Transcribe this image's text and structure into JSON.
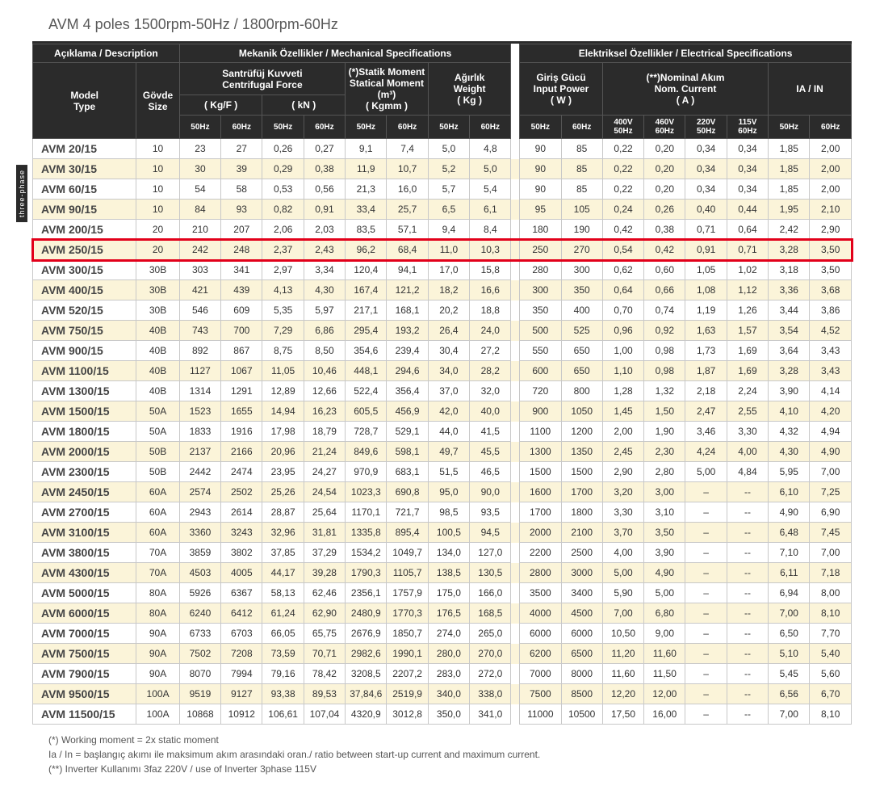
{
  "title": "AVM 4 poles 1500rpm-50Hz  / 1800rpm-60Hz",
  "side_label": "three-phase",
  "headers": {
    "desc": "Açıklama / Description",
    "mech": "Mekanik Özellikler / Mechanical Specifications",
    "elec": "Elektriksel Özellikler / Electrical Specifications",
    "model": "Model\nType",
    "size": "Gövde\nSize",
    "cf": "Santrüfüj Kuvveti\nCentrifugal Force",
    "cf_kg": "( Kg/F )",
    "cf_kn": "( kN )",
    "sm": "(*)Statik Moment\nStatical Moment (m³)",
    "sm_unit": "( Kgmm )",
    "wt": "Ağırlık\nWeight",
    "wt_unit": "( Kg )",
    "ip": "Giriş Gücü\nInput Power",
    "ip_unit": "( W )",
    "nc": "(**)Nominal Akım\nNom. Current",
    "nc_unit": "( A )",
    "iain": "IA / IN",
    "sub": {
      "hz50": "50Hz",
      "hz60": "60Hz",
      "v400_50": "400V\n50Hz",
      "v460_60": "460V\n60Hz",
      "v220_50": "220V\n50Hz",
      "v115_60": "115V\n60Hz"
    }
  },
  "highlight_model": "AVM 250/15",
  "rows": [
    {
      "model": "AVM 20/15",
      "size": "10",
      "cf": [
        "23",
        "27",
        "0,26",
        "0,27"
      ],
      "sm": [
        "9,1",
        "7,4"
      ],
      "wt": [
        "5,0",
        "4,8"
      ],
      "ip": [
        "90",
        "85"
      ],
      "nc": [
        "0,22",
        "0,20",
        "0,34",
        "0,34"
      ],
      "ia": [
        "1,85",
        "2,00"
      ]
    },
    {
      "model": "AVM 30/15",
      "size": "10",
      "cf": [
        "30",
        "39",
        "0,29",
        "0,38"
      ],
      "sm": [
        "11,9",
        "10,7"
      ],
      "wt": [
        "5,2",
        "5,0"
      ],
      "ip": [
        "90",
        "85"
      ],
      "nc": [
        "0,22",
        "0,20",
        "0,34",
        "0,34"
      ],
      "ia": [
        "1,85",
        "2,00"
      ]
    },
    {
      "model": "AVM 60/15",
      "size": "10",
      "cf": [
        "54",
        "58",
        "0,53",
        "0,56"
      ],
      "sm": [
        "21,3",
        "16,0"
      ],
      "wt": [
        "5,7",
        "5,4"
      ],
      "ip": [
        "90",
        "85"
      ],
      "nc": [
        "0,22",
        "0,20",
        "0,34",
        "0,34"
      ],
      "ia": [
        "1,85",
        "2,00"
      ]
    },
    {
      "model": "AVM 90/15",
      "size": "10",
      "cf": [
        "84",
        "93",
        "0,82",
        "0,91"
      ],
      "sm": [
        "33,4",
        "25,7"
      ],
      "wt": [
        "6,5",
        "6,1"
      ],
      "ip": [
        "95",
        "105"
      ],
      "nc": [
        "0,24",
        "0,26",
        "0,40",
        "0,44"
      ],
      "ia": [
        "1,95",
        "2,10"
      ]
    },
    {
      "model": "AVM 200/15",
      "size": "20",
      "cf": [
        "210",
        "207",
        "2,06",
        "2,03"
      ],
      "sm": [
        "83,5",
        "57,1"
      ],
      "wt": [
        "9,4",
        "8,4"
      ],
      "ip": [
        "180",
        "190"
      ],
      "nc": [
        "0,42",
        "0,38",
        "0,71",
        "0,64"
      ],
      "ia": [
        "2,42",
        "2,90"
      ]
    },
    {
      "model": "AVM 250/15",
      "size": "20",
      "cf": [
        "242",
        "248",
        "2,37",
        "2,43"
      ],
      "sm": [
        "96,2",
        "68,4"
      ],
      "wt": [
        "11,0",
        "10,3"
      ],
      "ip": [
        "250",
        "270"
      ],
      "nc": [
        "0,54",
        "0,42",
        "0,91",
        "0,71"
      ],
      "ia": [
        "3,28",
        "3,50"
      ]
    },
    {
      "model": "AVM 300/15",
      "size": "30B",
      "cf": [
        "303",
        "341",
        "2,97",
        "3,34"
      ],
      "sm": [
        "120,4",
        "94,1"
      ],
      "wt": [
        "17,0",
        "15,8"
      ],
      "ip": [
        "280",
        "300"
      ],
      "nc": [
        "0,62",
        "0,60",
        "1,05",
        "1,02"
      ],
      "ia": [
        "3,18",
        "3,50"
      ]
    },
    {
      "model": "AVM 400/15",
      "size": "30B",
      "cf": [
        "421",
        "439",
        "4,13",
        "4,30"
      ],
      "sm": [
        "167,4",
        "121,2"
      ],
      "wt": [
        "18,2",
        "16,6"
      ],
      "ip": [
        "300",
        "350"
      ],
      "nc": [
        "0,64",
        "0,66",
        "1,08",
        "1,12"
      ],
      "ia": [
        "3,36",
        "3,68"
      ]
    },
    {
      "model": "AVM 520/15",
      "size": "30B",
      "cf": [
        "546",
        "609",
        "5,35",
        "5,97"
      ],
      "sm": [
        "217,1",
        "168,1"
      ],
      "wt": [
        "20,2",
        "18,8"
      ],
      "ip": [
        "350",
        "400"
      ],
      "nc": [
        "0,70",
        "0,74",
        "1,19",
        "1,26"
      ],
      "ia": [
        "3,44",
        "3,86"
      ]
    },
    {
      "model": "AVM 750/15",
      "size": "40B",
      "cf": [
        "743",
        "700",
        "7,29",
        "6,86"
      ],
      "sm": [
        "295,4",
        "193,2"
      ],
      "wt": [
        "26,4",
        "24,0"
      ],
      "ip": [
        "500",
        "525"
      ],
      "nc": [
        "0,96",
        "0,92",
        "1,63",
        "1,57"
      ],
      "ia": [
        "3,54",
        "4,52"
      ]
    },
    {
      "model": "AVM 900/15",
      "size": "40B",
      "cf": [
        "892",
        "867",
        "8,75",
        "8,50"
      ],
      "sm": [
        "354,6",
        "239,4"
      ],
      "wt": [
        "30,4",
        "27,2"
      ],
      "ip": [
        "550",
        "650"
      ],
      "nc": [
        "1,00",
        "0,98",
        "1,73",
        "1,69"
      ],
      "ia": [
        "3,64",
        "3,43"
      ]
    },
    {
      "model": "AVM 1100/15",
      "size": "40B",
      "cf": [
        "1127",
        "1067",
        "11,05",
        "10,46"
      ],
      "sm": [
        "448,1",
        "294,6"
      ],
      "wt": [
        "34,0",
        "28,2"
      ],
      "ip": [
        "600",
        "650"
      ],
      "nc": [
        "1,10",
        "0,98",
        "1,87",
        "1,69"
      ],
      "ia": [
        "3,28",
        "3,43"
      ]
    },
    {
      "model": "AVM 1300/15",
      "size": "40B",
      "cf": [
        "1314",
        "1291",
        "12,89",
        "12,66"
      ],
      "sm": [
        "522,4",
        "356,4"
      ],
      "wt": [
        "37,0",
        "32,0"
      ],
      "ip": [
        "720",
        "800"
      ],
      "nc": [
        "1,28",
        "1,32",
        "2,18",
        "2,24"
      ],
      "ia": [
        "3,90",
        "4,14"
      ]
    },
    {
      "model": "AVM 1500/15",
      "size": "50A",
      "cf": [
        "1523",
        "1655",
        "14,94",
        "16,23"
      ],
      "sm": [
        "605,5",
        "456,9"
      ],
      "wt": [
        "42,0",
        "40,0"
      ],
      "ip": [
        "900",
        "1050"
      ],
      "nc": [
        "1,45",
        "1,50",
        "2,47",
        "2,55"
      ],
      "ia": [
        "4,10",
        "4,20"
      ]
    },
    {
      "model": "AVM 1800/15",
      "size": "50A",
      "cf": [
        "1833",
        "1916",
        "17,98",
        "18,79"
      ],
      "sm": [
        "728,7",
        "529,1"
      ],
      "wt": [
        "44,0",
        "41,5"
      ],
      "ip": [
        "1100",
        "1200"
      ],
      "nc": [
        "2,00",
        "1,90",
        "3,46",
        "3,30"
      ],
      "ia": [
        "4,32",
        "4,94"
      ]
    },
    {
      "model": "AVM 2000/15",
      "size": "50B",
      "cf": [
        "2137",
        "2166",
        "20,96",
        "21,24"
      ],
      "sm": [
        "849,6",
        "598,1"
      ],
      "wt": [
        "49,7",
        "45,5"
      ],
      "ip": [
        "1300",
        "1350"
      ],
      "nc": [
        "2,45",
        "2,30",
        "4,24",
        "4,00"
      ],
      "ia": [
        "4,30",
        "4,90"
      ]
    },
    {
      "model": "AVM 2300/15",
      "size": "50B",
      "cf": [
        "2442",
        "2474",
        "23,95",
        "24,27"
      ],
      "sm": [
        "970,9",
        "683,1"
      ],
      "wt": [
        "51,5",
        "46,5"
      ],
      "ip": [
        "1500",
        "1500"
      ],
      "nc": [
        "2,90",
        "2,80",
        "5,00",
        "4,84"
      ],
      "ia": [
        "5,95",
        "7,00"
      ]
    },
    {
      "model": "AVM 2450/15",
      "size": "60A",
      "cf": [
        "2574",
        "2502",
        "25,26",
        "24,54"
      ],
      "sm": [
        "1023,3",
        "690,8"
      ],
      "wt": [
        "95,0",
        "90,0"
      ],
      "ip": [
        "1600",
        "1700"
      ],
      "nc": [
        "3,20",
        "3,00",
        "–",
        "--"
      ],
      "ia": [
        "6,10",
        "7,25"
      ]
    },
    {
      "model": "AVM 2700/15",
      "size": "60A",
      "cf": [
        "2943",
        "2614",
        "28,87",
        "25,64"
      ],
      "sm": [
        "1170,1",
        "721,7"
      ],
      "wt": [
        "98,5",
        "93,5"
      ],
      "ip": [
        "1700",
        "1800"
      ],
      "nc": [
        "3,30",
        "3,10",
        "–",
        "--"
      ],
      "ia": [
        "4,90",
        "6,90"
      ]
    },
    {
      "model": "AVM 3100/15",
      "size": "60A",
      "cf": [
        "3360",
        "3243",
        "32,96",
        "31,81"
      ],
      "sm": [
        "1335,8",
        "895,4"
      ],
      "wt": [
        "100,5",
        "94,5"
      ],
      "ip": [
        "2000",
        "2100"
      ],
      "nc": [
        "3,70",
        "3,50",
        "–",
        "--"
      ],
      "ia": [
        "6,48",
        "7,45"
      ]
    },
    {
      "model": "AVM 3800/15",
      "size": "70A",
      "cf": [
        "3859",
        "3802",
        "37,85",
        "37,29"
      ],
      "sm": [
        "1534,2",
        "1049,7"
      ],
      "wt": [
        "134,0",
        "127,0"
      ],
      "ip": [
        "2200",
        "2500"
      ],
      "nc": [
        "4,00",
        "3,90",
        "–",
        "--"
      ],
      "ia": [
        "7,10",
        "7,00"
      ]
    },
    {
      "model": "AVM 4300/15",
      "size": "70A",
      "cf": [
        "4503",
        "4005",
        "44,17",
        "39,28"
      ],
      "sm": [
        "1790,3",
        "1105,7"
      ],
      "wt": [
        "138,5",
        "130,5"
      ],
      "ip": [
        "2800",
        "3000"
      ],
      "nc": [
        "5,00",
        "4,90",
        "–",
        "--"
      ],
      "ia": [
        "6,11",
        "7,18"
      ]
    },
    {
      "model": "AVM 5000/15",
      "size": "80A",
      "cf": [
        "5926",
        "6367",
        "58,13",
        "62,46"
      ],
      "sm": [
        "2356,1",
        "1757,9"
      ],
      "wt": [
        "175,0",
        "166,0"
      ],
      "ip": [
        "3500",
        "3400"
      ],
      "nc": [
        "5,90",
        "5,00",
        "–",
        "--"
      ],
      "ia": [
        "6,94",
        "8,00"
      ]
    },
    {
      "model": "AVM 6000/15",
      "size": "80A",
      "cf": [
        "6240",
        "6412",
        "61,24",
        "62,90"
      ],
      "sm": [
        "2480,9",
        "1770,3"
      ],
      "wt": [
        "176,5",
        "168,5"
      ],
      "ip": [
        "4000",
        "4500"
      ],
      "nc": [
        "7,00",
        "6,80",
        "–",
        "--"
      ],
      "ia": [
        "7,00",
        "8,10"
      ]
    },
    {
      "model": "AVM 7000/15",
      "size": "90A",
      "cf": [
        "6733",
        "6703",
        "66,05",
        "65,75"
      ],
      "sm": [
        "2676,9",
        "1850,7"
      ],
      "wt": [
        "274,0",
        "265,0"
      ],
      "ip": [
        "6000",
        "6000"
      ],
      "nc": [
        "10,50",
        "9,00",
        "–",
        "--"
      ],
      "ia": [
        "6,50",
        "7,70"
      ]
    },
    {
      "model": "AVM 7500/15",
      "size": "90A",
      "cf": [
        "7502",
        "7208",
        "73,59",
        "70,71"
      ],
      "sm": [
        "2982,6",
        "1990,1"
      ],
      "wt": [
        "280,0",
        "270,0"
      ],
      "ip": [
        "6200",
        "6500"
      ],
      "nc": [
        "11,20",
        "11,60",
        "–",
        "--"
      ],
      "ia": [
        "5,10",
        "5,40"
      ]
    },
    {
      "model": "AVM 7900/15",
      "size": "90A",
      "cf": [
        "8070",
        "7994",
        "79,16",
        "78,42"
      ],
      "sm": [
        "3208,5",
        "2207,2"
      ],
      "wt": [
        "283,0",
        "272,0"
      ],
      "ip": [
        "7000",
        "8000"
      ],
      "nc": [
        "11,60",
        "11,50",
        "–",
        "--"
      ],
      "ia": [
        "5,45",
        "5,60"
      ]
    },
    {
      "model": "AVM 9500/15",
      "size": "100A",
      "cf": [
        "9519",
        "9127",
        "93,38",
        "89,53"
      ],
      "sm": [
        "37,84,6",
        "2519,9"
      ],
      "wt": [
        "340,0",
        "338,0"
      ],
      "ip": [
        "7500",
        "8500"
      ],
      "nc": [
        "12,20",
        "12,00",
        "–",
        "--"
      ],
      "ia": [
        "6,56",
        "6,70"
      ]
    },
    {
      "model": "AVM 11500/15",
      "size": "100A",
      "cf": [
        "10868",
        "10912",
        "106,61",
        "107,04"
      ],
      "sm": [
        "4320,9",
        "3012,8"
      ],
      "wt": [
        "350,0",
        "341,0"
      ],
      "ip": [
        "11000",
        "10500"
      ],
      "nc": [
        "17,50",
        "16,00",
        "–",
        "--"
      ],
      "ia": [
        "7,00",
        "8,10"
      ]
    }
  ],
  "footnotes": [
    "(*) Working moment = 2x static moment",
    "Ia / In = başlangıç akımı ile maksimum akım arasındaki oran./ ratio between start-up current and maximum current.",
    "(**) Inverter Kullanımı 3faz 220V / use of Inverter 3phase 115V"
  ],
  "colors": {
    "header_bg": "#2b2b2b",
    "alt_row_bg": "#fbf4d9",
    "highlight_border": "#e2001a",
    "border": "#c8c8c8",
    "text": "#333333"
  }
}
